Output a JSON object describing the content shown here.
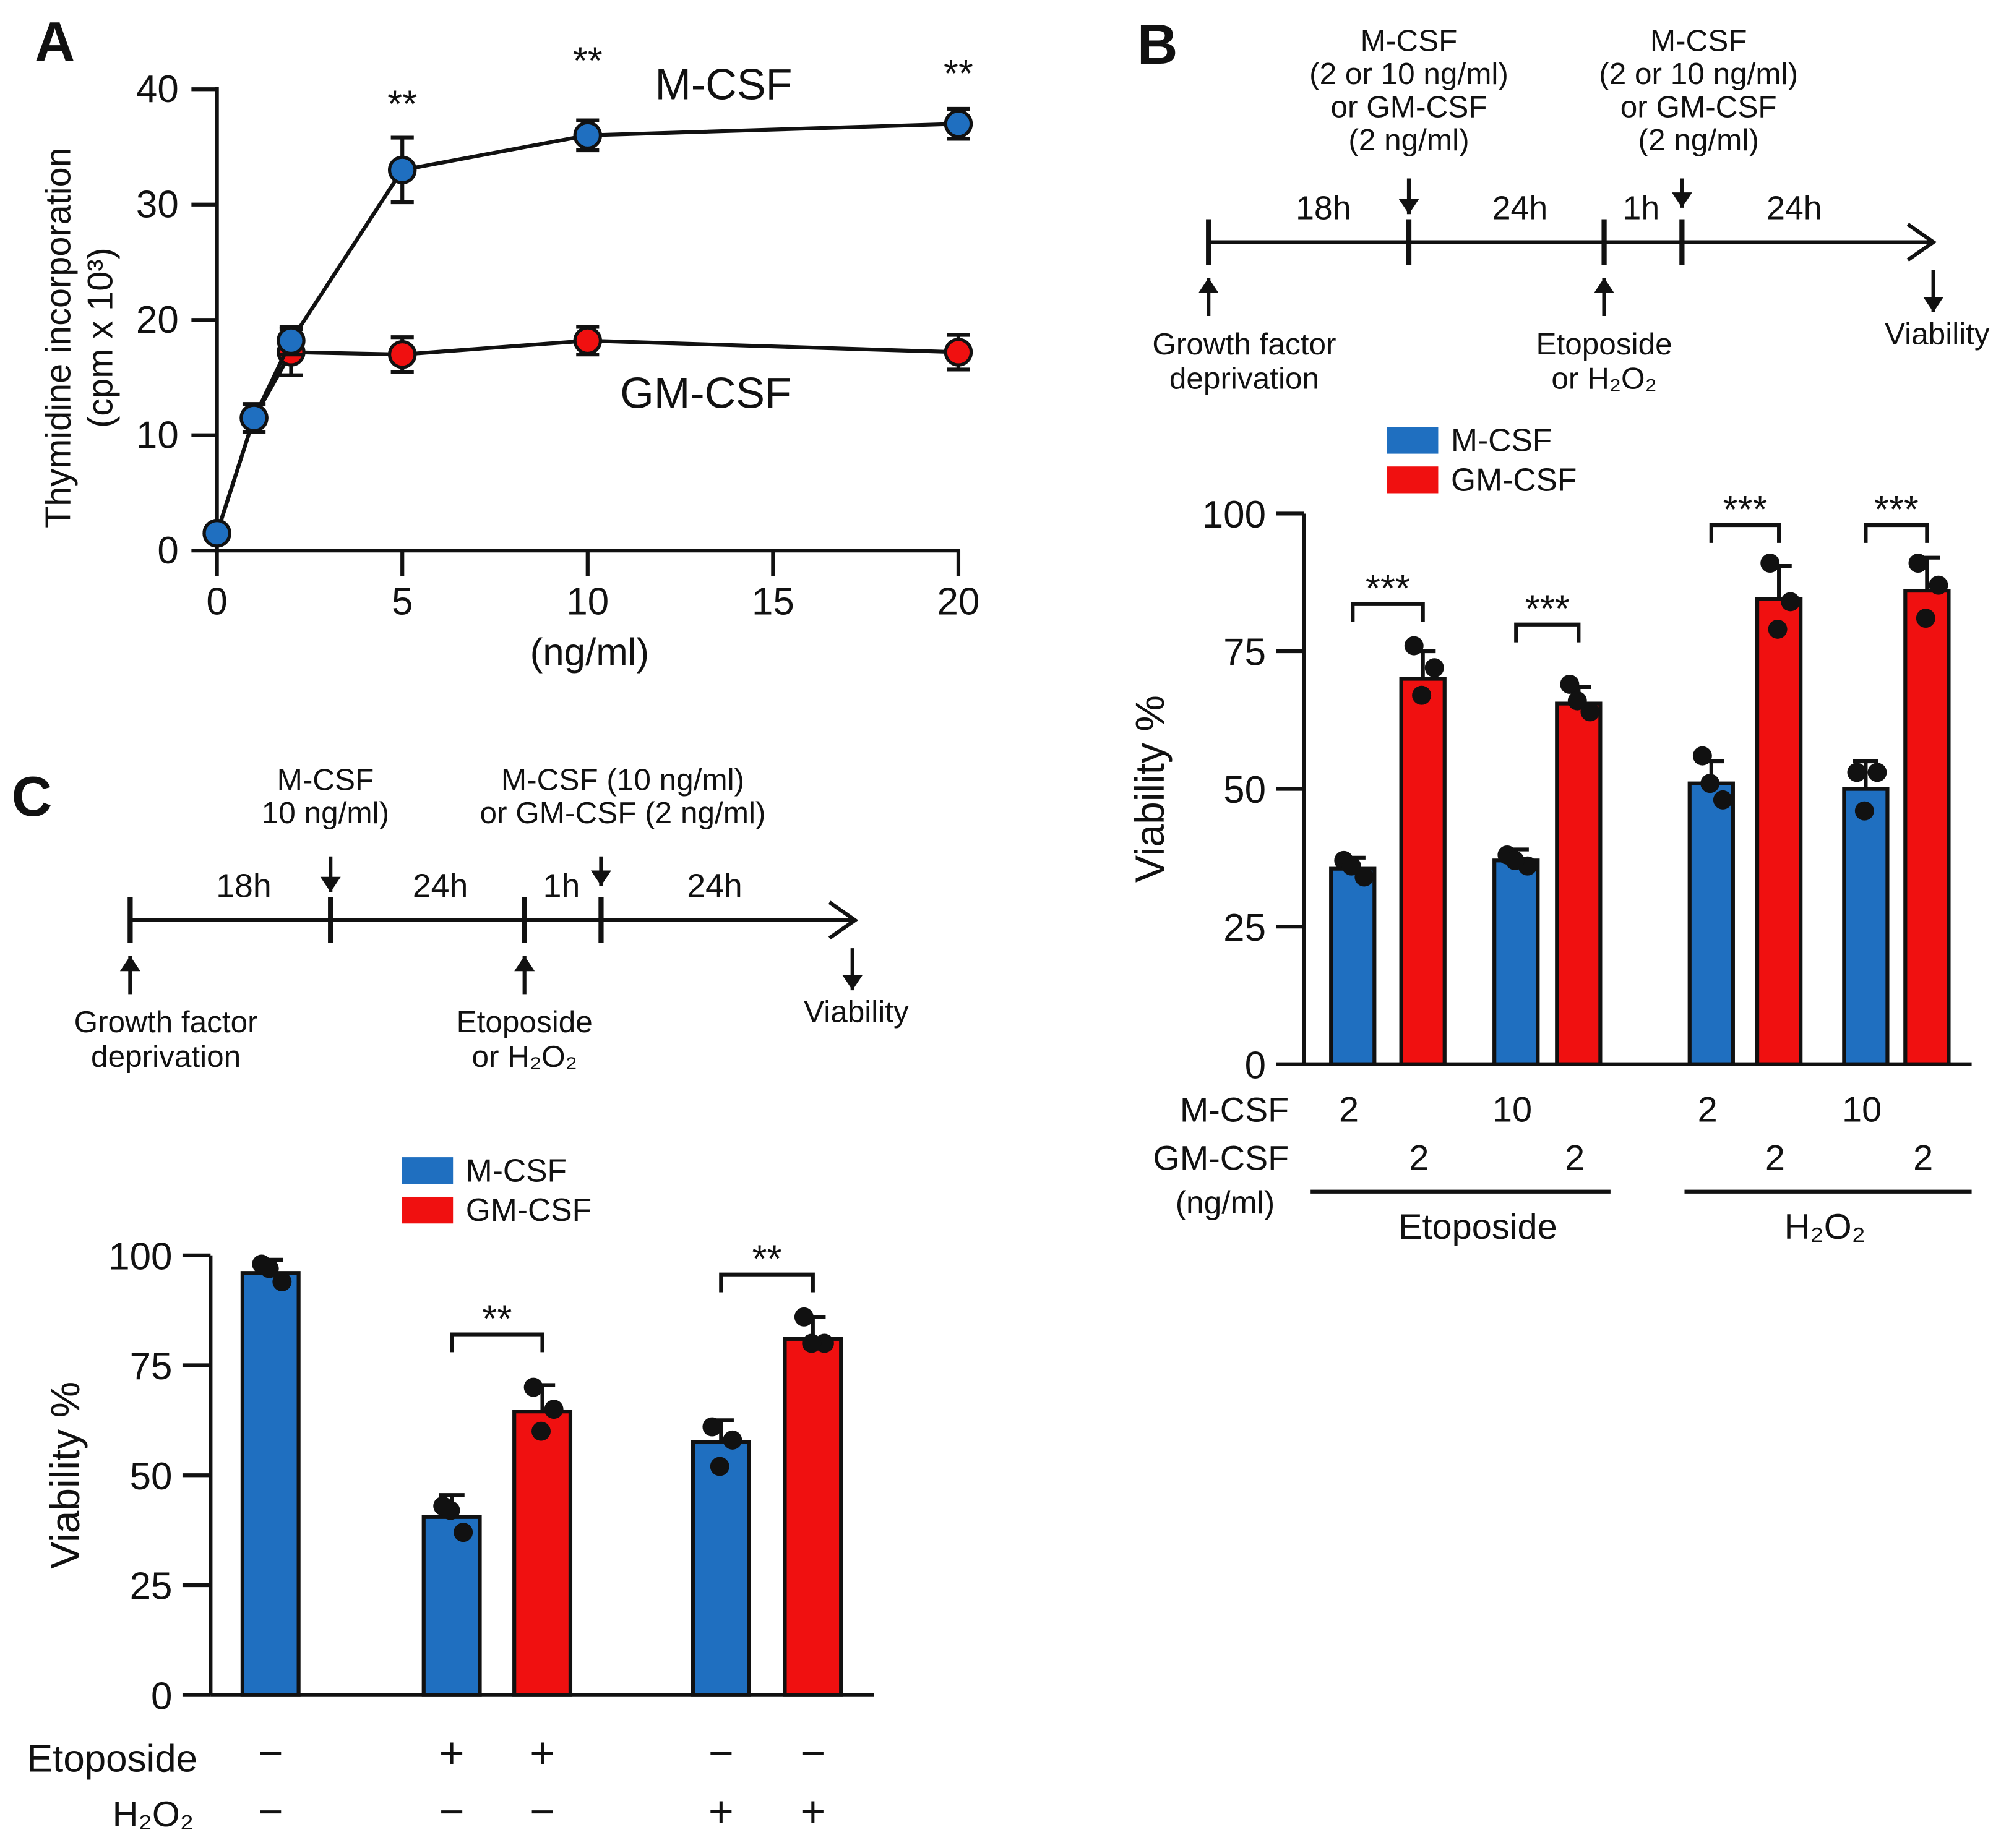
{
  "colors": {
    "mcsf": "#1f6fc0",
    "gmcsf": "#f01010",
    "ink": "#111111"
  },
  "panel_letters": [
    "A",
    "B",
    "C"
  ],
  "chart_data": [
    {
      "id": "A",
      "type": "line",
      "ylabel": [
        "Thymidine incorporation",
        "(cpm x 10³)"
      ],
      "xlabel": "(ng/ml)",
      "xlim": [
        0,
        20
      ],
      "ylim": [
        0,
        40
      ],
      "xticks": [
        "0",
        "5",
        "10",
        "15",
        "20"
      ],
      "yticks": [
        "0",
        "10",
        "20",
        "30",
        "40"
      ],
      "series": [
        {
          "name": "M-CSF",
          "color_key": "mcsf",
          "x": [
            0,
            1,
            2,
            5,
            10,
            20
          ],
          "y": [
            1.5,
            11.5,
            18.2,
            33,
            36,
            37
          ],
          "err": [
            0.5,
            1.2,
            1.2,
            2.8,
            1.3,
            1.3
          ]
        },
        {
          "name": "GM-CSF",
          "color_key": "gmcsf",
          "x": [
            0,
            1,
            2,
            5,
            10,
            20
          ],
          "y": [
            1.5,
            11.5,
            17.2,
            17,
            18.2,
            17.2
          ],
          "err": [
            0.5,
            1.2,
            2,
            1.5,
            1.2,
            1.5
          ]
        }
      ],
      "annotations": [
        {
          "x": 5,
          "text": "**"
        },
        {
          "x": 10,
          "text": "**"
        },
        {
          "x": 20,
          "text": "**"
        }
      ]
    },
    {
      "id": "B",
      "type": "bar",
      "ylabel": "Viability  %",
      "ylim": [
        0,
        100
      ],
      "yticks": [
        "0",
        "25",
        "50",
        "75",
        "100"
      ],
      "legend": [
        "M-CSF",
        "GM-CSF"
      ],
      "bars": [
        {
          "series": "M-CSF",
          "value": 35.5,
          "err": 2,
          "points": [
            37,
            34,
            36
          ]
        },
        {
          "series": "GM-CSF",
          "value": 70,
          "err": 5,
          "points": [
            76,
            72,
            67
          ]
        },
        {
          "series": "M-CSF",
          "value": 37,
          "err": 2,
          "points": [
            38,
            36,
            37
          ]
        },
        {
          "series": "GM-CSF",
          "value": 65.5,
          "err": 3,
          "points": [
            69,
            64,
            66
          ]
        },
        {
          "series": "M-CSF",
          "value": 51,
          "err": 4,
          "points": [
            56,
            48,
            51
          ]
        },
        {
          "series": "GM-CSF",
          "value": 84.5,
          "err": 6,
          "points": [
            91,
            84,
            79
          ]
        },
        {
          "series": "M-CSF",
          "value": 50,
          "err": 5,
          "points": [
            53,
            53,
            46
          ]
        },
        {
          "series": "GM-CSF",
          "value": 86,
          "err": 6,
          "points": [
            91,
            87,
            81
          ]
        }
      ],
      "significance": [
        {
          "pair": [
            0,
            1
          ],
          "text": "***"
        },
        {
          "pair": [
            2,
            3
          ],
          "text": "***"
        },
        {
          "pair": [
            4,
            5
          ],
          "text": "***"
        },
        {
          "pair": [
            6,
            7
          ],
          "text": "***"
        }
      ],
      "row_labels": {
        "mcsf": "M-CSF",
        "gmcsf": "GM-CSF",
        "unit": "(ng/ml)"
      },
      "mcsf_values": [
        "2",
        "",
        "10",
        "",
        "2",
        "",
        "10",
        ""
      ],
      "gmcsf_values": [
        "",
        "2",
        "",
        "2",
        "",
        "2",
        "",
        "2"
      ],
      "groups": [
        "Etoposide",
        "H₂O₂"
      ]
    },
    {
      "id": "C",
      "type": "bar",
      "ylabel": "Viability %",
      "ylim": [
        0,
        100
      ],
      "yticks": [
        "0",
        "25",
        "50",
        "75",
        "100"
      ],
      "legend": [
        "M-CSF",
        "GM-CSF"
      ],
      "bars": [
        {
          "series": "M-CSF",
          "value": 96,
          "err": 3,
          "points": [
            98,
            94,
            97
          ]
        },
        {
          "series": "M-CSF",
          "value": 40.5,
          "err": 5,
          "points": [
            43,
            37,
            42
          ]
        },
        {
          "series": "GM-CSF",
          "value": 64.5,
          "err": 6,
          "points": [
            70,
            65,
            60
          ]
        },
        {
          "series": "M-CSF",
          "value": 57.5,
          "err": 5,
          "points": [
            61,
            58,
            52
          ]
        },
        {
          "series": "GM-CSF",
          "value": 81,
          "err": 5,
          "points": [
            86,
            80,
            80
          ]
        }
      ],
      "significance": [
        {
          "pair": [
            1,
            2
          ],
          "text": "**"
        },
        {
          "pair": [
            3,
            4
          ],
          "text": "**"
        }
      ],
      "row_labels": {
        "etoposide": "Etoposide",
        "h2o2": "H₂O₂"
      },
      "etoposide_values": [
        "−",
        "+",
        "+",
        "−",
        "−"
      ],
      "h2o2_values": [
        "−",
        "−",
        "−",
        "+",
        "+"
      ]
    }
  ],
  "timelines": {
    "B": {
      "durations": [
        "18h",
        "24h",
        "1h",
        "24h"
      ],
      "treatment_1": [
        "M-CSF",
        "(2 or 10 ng/ml)",
        "or GM-CSF",
        "(2 ng/ml)"
      ],
      "treatment_2": [
        "M-CSF",
        "(2 or 10 ng/ml)",
        "or GM-CSF",
        "(2 ng/ml)"
      ],
      "start": [
        "Growth factor",
        "deprivation"
      ],
      "stress": [
        "Etoposide",
        "or H₂O₂"
      ],
      "end": "Viability"
    },
    "C": {
      "durations": [
        "18h",
        "24h",
        "1h",
        "24h"
      ],
      "treatment_1": [
        "M-CSF",
        "10 ng/ml)"
      ],
      "treatment_2": [
        "M-CSF (10 ng/ml)",
        "or GM-CSF (2 ng/ml)"
      ],
      "start": [
        "Growth factor",
        "deprivation"
      ],
      "stress": [
        "Etoposide",
        "or H₂O₂"
      ],
      "end": "Viability"
    }
  }
}
